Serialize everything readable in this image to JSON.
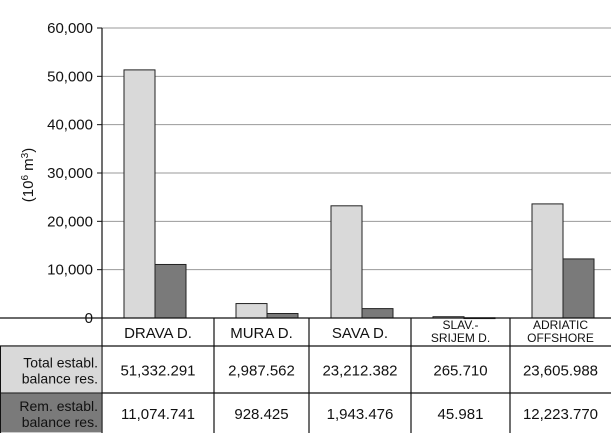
{
  "chart_data": {
    "type": "bar",
    "ylabel_main": "(10",
    "ylabel_sup": "6",
    "ylabel_mid": " m",
    "ylabel_sup2": "3",
    "ylabel_end": ")",
    "ylim": [
      0,
      60000
    ],
    "yticks": [
      {
        "value": 0,
        "label": "0"
      },
      {
        "value": 10000,
        "label": "10,000"
      },
      {
        "value": 20000,
        "label": "20,000"
      },
      {
        "value": 30000,
        "label": "30,000"
      },
      {
        "value": 40000,
        "label": "40,000"
      },
      {
        "value": 50000,
        "label": "50,000"
      },
      {
        "value": 60000,
        "label": "60,000"
      }
    ],
    "categories": [
      {
        "lines": [
          "DRAVA D."
        ],
        "small": false
      },
      {
        "lines": [
          "MURA D."
        ],
        "small": false
      },
      {
        "lines": [
          "SAVA D."
        ],
        "small": false
      },
      {
        "lines": [
          "SLAV.-",
          "SRIJEM D."
        ],
        "small": true
      },
      {
        "lines": [
          "ADRIATIC",
          "OFFSHORE"
        ],
        "small": true
      }
    ],
    "series": [
      {
        "values": [
          51332.291,
          2987.562,
          23212.382,
          265.71,
          23605.988
        ],
        "color": "#d9d9d9"
      },
      {
        "values": [
          11074.741,
          928.425,
          1943.476,
          45.981,
          12223.77
        ],
        "color": "#7a7a7a"
      }
    ],
    "table": {
      "rows": [
        {
          "head": [
            "Total establ.",
            "balance res."
          ],
          "cells": [
            "51,332.291",
            "2,987.562",
            "23,212.382",
            "265.710",
            "23,605.988"
          ],
          "shade": "#d9d9d9"
        },
        {
          "head": [
            "Rem. establ.",
            "balance res."
          ],
          "cells": [
            "11,074.741",
            "928.425",
            "1,943.476",
            "45.981",
            "12,223.770"
          ],
          "shade": "#7a7a7a"
        }
      ]
    }
  }
}
